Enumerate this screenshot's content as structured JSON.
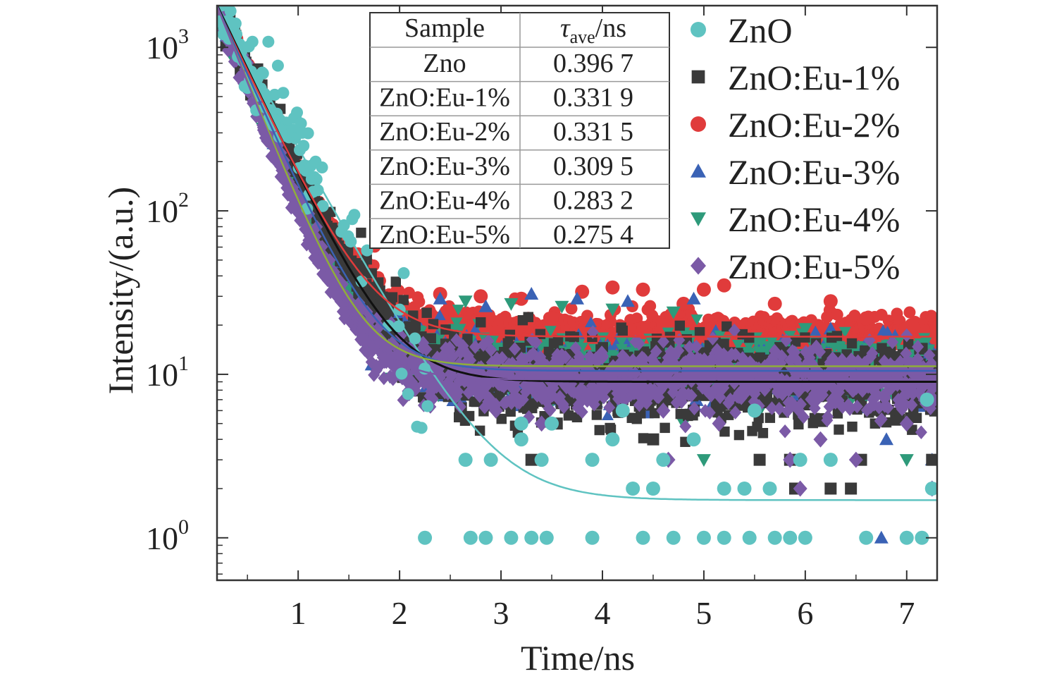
{
  "chart_data": {
    "type": "scatter",
    "xlabel": "Time/ns",
    "ylabel": "Intensity/(a.u.)",
    "xlim": [
      0.2,
      7.3
    ],
    "ylim": [
      0.55,
      1800
    ],
    "y_scale": "log",
    "x_ticks": [
      "1",
      "2",
      "3",
      "4",
      "5",
      "6",
      "7"
    ],
    "y_ticks": [
      {
        "value": 1,
        "base": "10",
        "exp": "0"
      },
      {
        "value": 10,
        "base": "10",
        "exp": "1"
      },
      {
        "value": 100,
        "base": "10",
        "exp": "2"
      },
      {
        "value": 1000,
        "base": "10",
        "exp": "3"
      }
    ],
    "legend_position": "right",
    "series": [
      {
        "name": "ZnO",
        "marker": "circle",
        "color": "#5fc3c1",
        "fit": {
          "A": 3000,
          "tau": 0.3967,
          "baseline": 1.7
        },
        "baseline_points": [
          [
            2.25,
            1
          ],
          [
            2.7,
            1
          ],
          [
            2.85,
            1
          ],
          [
            3.1,
            1
          ],
          [
            3.3,
            1
          ],
          [
            3.45,
            1
          ],
          [
            3.9,
            1
          ],
          [
            4.4,
            1
          ],
          [
            4.7,
            1
          ],
          [
            5.0,
            1
          ],
          [
            5.2,
            1
          ],
          [
            5.45,
            1
          ],
          [
            5.7,
            1
          ],
          [
            5.85,
            1
          ],
          [
            6.0,
            1
          ],
          [
            6.6,
            1
          ],
          [
            7.0,
            1
          ],
          [
            7.15,
            1
          ],
          [
            4.3,
            2
          ],
          [
            4.5,
            2
          ],
          [
            5.2,
            2
          ],
          [
            5.4,
            2
          ],
          [
            5.65,
            2
          ],
          [
            7.25,
            2
          ],
          [
            2.65,
            3
          ],
          [
            2.9,
            3
          ],
          [
            3.4,
            3
          ],
          [
            3.9,
            3
          ],
          [
            4.6,
            3
          ],
          [
            5.95,
            3
          ],
          [
            6.25,
            3
          ],
          [
            3.2,
            4
          ],
          [
            4.1,
            4
          ],
          [
            4.9,
            4
          ],
          [
            3.2,
            5
          ],
          [
            3.5,
            5
          ],
          [
            4.2,
            6
          ],
          [
            5.5,
            6
          ],
          [
            7.2,
            7
          ]
        ]
      },
      {
        "name": "ZnO:Eu-1%",
        "marker": "square",
        "color": "#3a3a3a",
        "fit": {
          "A": 3300,
          "tau": 0.3319,
          "baseline": 9.0
        },
        "baseline_points": [
          [
            2.6,
            6
          ],
          [
            2.95,
            7
          ],
          [
            3.3,
            3
          ],
          [
            3.55,
            5
          ],
          [
            4.5,
            4
          ],
          [
            5.55,
            3
          ],
          [
            5.85,
            3
          ],
          [
            6.25,
            2
          ],
          [
            6.45,
            2
          ],
          [
            6.55,
            3
          ],
          [
            7.25,
            3
          ],
          [
            5.9,
            2
          ],
          [
            4.9,
            6
          ],
          [
            3.7,
            7
          ]
        ]
      },
      {
        "name": "ZnO:Eu-2%",
        "marker": "circle",
        "color": "#e03b3b",
        "fit": {
          "A": 3200,
          "tau": 0.3315,
          "baseline": 17.0
        },
        "baseline_points": [
          [
            2.4,
            31
          ],
          [
            2.8,
            30
          ],
          [
            3.2,
            29
          ],
          [
            3.8,
            32
          ],
          [
            4.1,
            34
          ],
          [
            4.4,
            33
          ],
          [
            4.8,
            27
          ],
          [
            5.0,
            33
          ],
          [
            5.2,
            35
          ],
          [
            5.7,
            27
          ],
          [
            6.25,
            28
          ],
          [
            6.6,
            22
          ],
          [
            7.05,
            20
          ],
          [
            4.6,
            20
          ],
          [
            3.5,
            22
          ]
        ]
      },
      {
        "name": "ZnO:Eu-3%",
        "marker": "triangle-up",
        "color": "#3a62b5",
        "fit": {
          "A": 3400,
          "tau": 0.3095,
          "baseline": 10.5
        },
        "baseline_points": [
          [
            2.4,
            29
          ],
          [
            2.85,
            26
          ],
          [
            3.3,
            31
          ],
          [
            3.75,
            29
          ],
          [
            4.25,
            28
          ],
          [
            4.9,
            29
          ],
          [
            6.25,
            19
          ],
          [
            6.8,
            4
          ],
          [
            6.75,
            1
          ],
          [
            7.25,
            3
          ],
          [
            6.1,
            18
          ]
        ]
      },
      {
        "name": "ZnO:Eu-4%",
        "marker": "triangle-down",
        "color": "#2e9a7a",
        "fit": {
          "A": 3600,
          "tau": 0.2832,
          "baseline": 11.2
        },
        "baseline_points": [
          [
            2.65,
            28
          ],
          [
            3.1,
            27
          ],
          [
            3.6,
            26
          ],
          [
            4.1,
            25
          ],
          [
            4.7,
            24
          ],
          [
            5.0,
            3
          ],
          [
            4.8,
            5
          ],
          [
            5.2,
            7
          ],
          [
            5.5,
            6
          ],
          [
            6.0,
            19
          ],
          [
            7.0,
            3
          ]
        ]
      },
      {
        "name": "ZnO:Eu-5%",
        "marker": "diamond",
        "color": "#7b5aa6",
        "fit": {
          "A": 3700,
          "tau": 0.2754,
          "baseline": 9.3
        },
        "baseline_points": [
          [
            2.95,
            6
          ],
          [
            3.4,
            5
          ],
          [
            3.85,
            7
          ],
          [
            4.2,
            8
          ],
          [
            4.6,
            6
          ],
          [
            4.65,
            3
          ],
          [
            5.15,
            5
          ],
          [
            5.85,
            3
          ],
          [
            5.95,
            2
          ],
          [
            6.15,
            4
          ],
          [
            6.5,
            3
          ],
          [
            7.0,
            5
          ],
          [
            7.25,
            2
          ]
        ]
      }
    ],
    "table": {
      "header_sample": "Sample",
      "header_tau_sym": "τ",
      "header_tau_sub": "ave",
      "header_tau_unit": "/ns",
      "rows": [
        {
          "sample": "Zno",
          "tau": "0.396 7"
        },
        {
          "sample": "ZnO:Eu-1%",
          "tau": "0.331 9"
        },
        {
          "sample": "ZnO:Eu-2%",
          "tau": "0.331 5"
        },
        {
          "sample": "ZnO:Eu-3%",
          "tau": "0.309 5"
        },
        {
          "sample": "ZnO:Eu-4%",
          "tau": "0.283 2"
        },
        {
          "sample": "ZnO:Eu-5%",
          "tau": "0.275 4"
        }
      ]
    }
  }
}
